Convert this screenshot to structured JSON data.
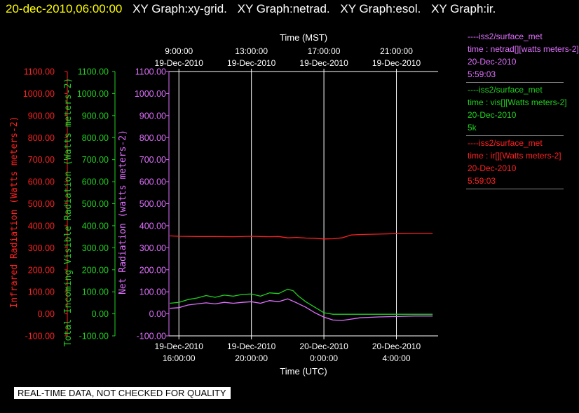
{
  "title": {
    "datetime": "20-dec-2010,06:00:00",
    "graphs": [
      "XY Graph:xy-grid.",
      "XY Graph:netrad.",
      "XY Graph:esol.",
      "XY Graph:ir."
    ]
  },
  "colors": {
    "infrared": "#ff2020",
    "visible": "#20d020",
    "netrad": "#e070ff",
    "axis": "#ffffff"
  },
  "legend": [
    {
      "lines": [
        "----iss2/surface_met",
        "time : netrad[][watts meters-2]",
        "20-Dec-2010",
        "5:59:03"
      ],
      "color": "#e070ff"
    },
    {
      "lines": [
        "----iss2/surface_met",
        "time : vis[][Watts meters-2]",
        "20-Dec-2010",
        "5k"
      ],
      "color": "#20d020"
    },
    {
      "lines": [
        "----iss2/surface_met",
        "time : ir[][Watts meters-2]",
        "20-Dec-2010",
        "5:59:03"
      ],
      "color": "#ff2020"
    }
  ],
  "footer_note": "REAL-TIME DATA, NOT CHECKED FOR QUALITY",
  "chart_data": {
    "type": "line",
    "x_unit": "hours since 19-Dec-2010 16:00 UTC",
    "xlim": [
      -0.55,
      14.3
    ],
    "ylim": [
      -100,
      1100
    ],
    "x_grid": [
      0,
      4,
      8,
      12
    ],
    "top_axis": {
      "label": "Time (MST)",
      "ticks": [
        {
          "x": 0,
          "line1": "9:00:00",
          "line2": "19-Dec-2010"
        },
        {
          "x": 4,
          "line1": "13:00:00",
          "line2": "19-Dec-2010"
        },
        {
          "x": 8,
          "line1": "17:00:00",
          "line2": "19-Dec-2010"
        },
        {
          "x": 12,
          "line1": "21:00:00",
          "line2": "19-Dec-2010"
        }
      ]
    },
    "bottom_axis": {
      "label": "Time (UTC)",
      "ticks": [
        {
          "x": 0,
          "line1": "19-Dec-2010",
          "line2": "16:00:00"
        },
        {
          "x": 4,
          "line1": "19-Dec-2010",
          "line2": "20:00:00"
        },
        {
          "x": 8,
          "line1": "20-Dec-2010",
          "line2": "0:00:00"
        },
        {
          "x": 12,
          "line1": "20-Dec-2010",
          "line2": "4:00:00"
        }
      ]
    },
    "y_ticks": [
      1100,
      1000,
      900,
      800,
      700,
      600,
      500,
      400,
      300,
      200,
      100,
      0,
      -100
    ],
    "y_tick_labels": [
      "1100.00",
      "1000.00",
      "900.00",
      "800.00",
      "700.00",
      "600.00",
      "500.00",
      "400.00",
      "300.00",
      "200.00",
      "100.00",
      "0.00",
      "-100.00"
    ],
    "y_axes": [
      {
        "label": "Infrared Radiation (Watts meters-2)",
        "color": "#ff2020"
      },
      {
        "label": "Total Incoming Visible Radiation (Watts meters-2)",
        "color": "#20d020"
      },
      {
        "label": "Net Radiation (watts meters-2)",
        "color": "#e070ff"
      }
    ],
    "series": [
      {
        "name": "ir",
        "color": "#ff2020",
        "x": [
          -0.5,
          0,
          1,
          2,
          3,
          4,
          4.5,
          5,
          5.5,
          6,
          6.5,
          7,
          7.5,
          8,
          8.5,
          9,
          9.5,
          10,
          11,
          12,
          13,
          14
        ],
        "y": [
          354,
          352,
          351,
          351,
          350,
          352,
          351,
          350,
          351,
          345,
          347,
          344,
          343,
          340,
          341,
          345,
          358,
          360,
          362,
          364,
          366,
          366
        ]
      },
      {
        "name": "vis",
        "color": "#20d020",
        "x": [
          -0.5,
          0,
          0.5,
          1,
          1.5,
          2,
          2.5,
          3,
          3.5,
          4,
          4.5,
          5,
          5.5,
          6,
          6.3,
          6.6,
          7,
          7.5,
          8,
          8.5,
          9,
          10,
          11,
          12,
          13,
          14
        ],
        "y": [
          48,
          52,
          65,
          72,
          83,
          75,
          85,
          80,
          88,
          90,
          80,
          95,
          92,
          112,
          105,
          80,
          55,
          30,
          5,
          -2,
          -2,
          -2,
          -2,
          -2,
          -2,
          -2
        ]
      },
      {
        "name": "netrad",
        "color": "#e070ff",
        "x": [
          -0.5,
          0,
          0.5,
          1,
          1.5,
          2,
          2.5,
          3,
          3.5,
          4,
          4.5,
          5,
          5.5,
          6,
          6.5,
          7,
          7.5,
          8,
          8.5,
          9,
          9.5,
          10,
          11,
          12,
          13,
          14
        ],
        "y": [
          25,
          28,
          40,
          45,
          50,
          45,
          52,
          48,
          52,
          55,
          48,
          60,
          55,
          68,
          50,
          30,
          5,
          -15,
          -28,
          -30,
          -24,
          -18,
          -14,
          -12,
          -10,
          -10
        ]
      }
    ]
  }
}
